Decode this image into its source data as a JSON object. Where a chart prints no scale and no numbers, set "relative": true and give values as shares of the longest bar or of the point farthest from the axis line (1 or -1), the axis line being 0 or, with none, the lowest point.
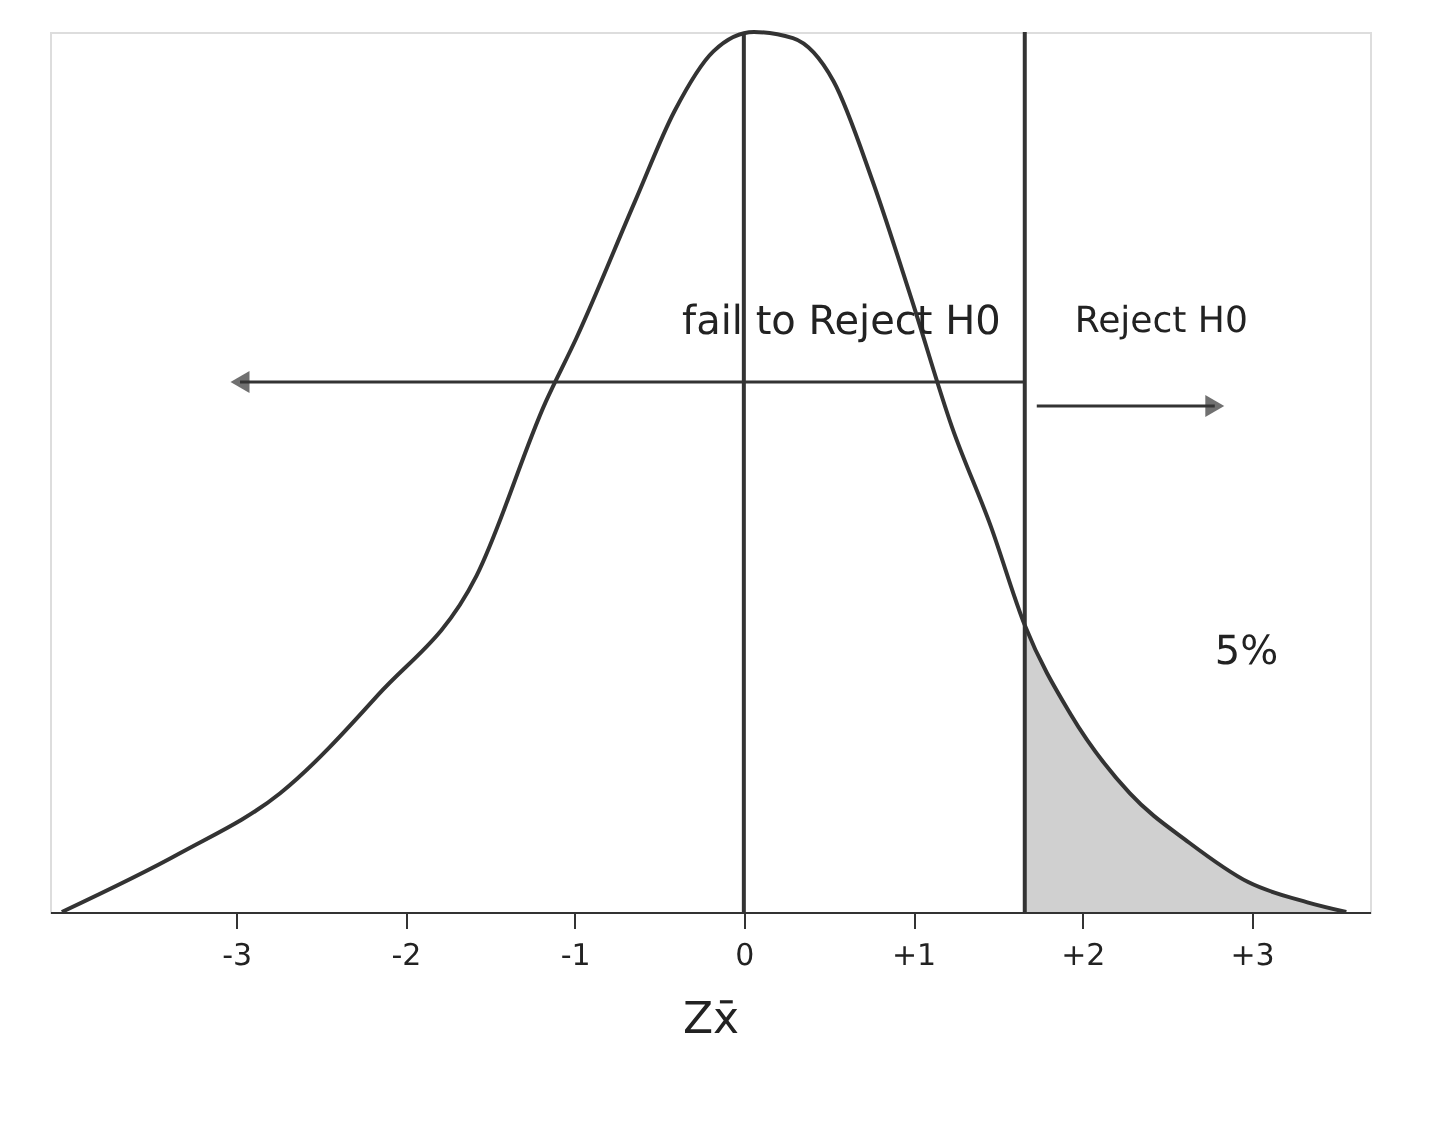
{
  "chart_data": {
    "type": "line",
    "relative": true,
    "xlabel": "Zx̄",
    "xlim": [
      -4.1,
      3.7
    ],
    "xticks": [
      -3,
      -2,
      -1,
      0,
      {
        "value": 1,
        "label": "+1"
      },
      {
        "value": 2,
        "label": "+2"
      },
      {
        "value": 3,
        "label": "+3"
      }
    ],
    "series": [
      {
        "color": "#333333",
        "x": [
          -4.03,
          -3.33,
          -2.74,
          -2.16,
          -1.58,
          -1.17,
          -0.99,
          -0.64,
          -0.41,
          -0.18,
          0.06,
          0.29,
          0.53,
          0.76,
          0.99,
          1.23,
          1.46,
          1.66,
          1.93,
          2.28,
          2.63,
          2.98,
          3.33,
          3.56
        ],
        "values": [
          0,
          0.067,
          0.135,
          0.247,
          0.382,
          0.58,
          0.652,
          0.809,
          0.91,
          0.978,
          1.0,
          0.993,
          0.944,
          0.831,
          0.697,
          0.551,
          0.438,
          0.326,
          0.225,
          0.135,
          0.079,
          0.034,
          0.011,
          0
        ]
      },
      {
        "type": "area",
        "color": "#b0b0b0",
        "x": [
          1.66,
          1.93,
          2.28,
          2.63,
          2.98,
          3.33,
          3.56
        ],
        "values": [
          0.326,
          0.225,
          0.135,
          0.079,
          0.034,
          0.011,
          0
        ]
      }
    ],
    "ref_lines": [
      {
        "axis": "x",
        "value": 0
      },
      {
        "axis": "x",
        "value": 1.66
      }
    ],
    "annotations": [
      "fail to Reject H0",
      "Reject H0",
      "5%"
    ]
  }
}
